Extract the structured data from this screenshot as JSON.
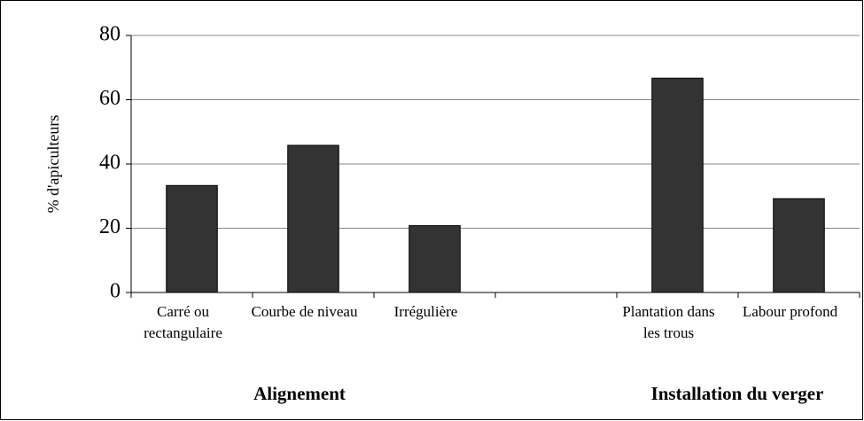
{
  "chart_data": {
    "type": "bar",
    "y_label": "% d'apiculteurs",
    "categories": [
      "Carré ou rectangulaire",
      "Courbe de niveau",
      "Irrégulière",
      null,
      "Plantation dans les trous",
      "Labour profond"
    ],
    "values": [
      33.3,
      45.8,
      20.8,
      null,
      66.7,
      29.2
    ],
    "color": "#333333",
    "groups": [
      "Alignement",
      "Installation du verger"
    ],
    "ylim": [
      0,
      80
    ],
    "yticks": [
      0,
      20,
      40,
      60,
      80
    ],
    "grid": true
  }
}
